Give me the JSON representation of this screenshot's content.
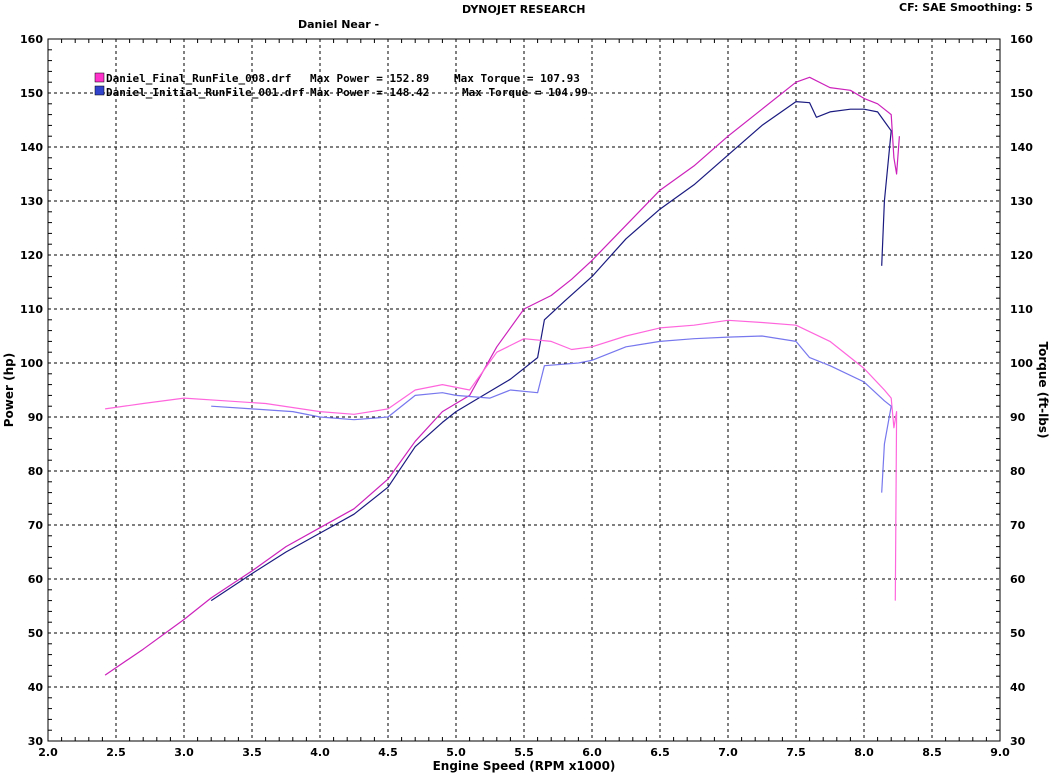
{
  "header": {
    "title": "DYNOJET RESEARCH",
    "operator": "Daniel Near -",
    "settings": "CF: SAE  Smoothing: 5"
  },
  "legend": [
    {
      "file": "Daniel_Final_RunFile_008.drf",
      "power_text": "Max Power = 152.89",
      "torque_text": "Max Torque = 107.93",
      "color": "#ff33cc"
    },
    {
      "file": "Daniel_Initial_RunFile_001.drf",
      "power_text": "Max Power = 148.42",
      "torque_text": "Max Torque = 104.99",
      "color": "#1a1a80"
    }
  ],
  "chart_data": {
    "type": "line",
    "xlabel": "Engine Speed (RPM x1000)",
    "ylabel": "Power (hp)",
    "y2label": "Torque (ft-lbs)",
    "xlim": [
      2.0,
      9.0
    ],
    "ylim": [
      30,
      160
    ],
    "y2lim": [
      30,
      160
    ],
    "x_ticks": [
      "2.0",
      "2.5",
      "3.0",
      "3.5",
      "4.0",
      "4.5",
      "5.0",
      "5.5",
      "6.0",
      "6.5",
      "7.0",
      "7.5",
      "8.0",
      "8.5",
      "9.0"
    ],
    "y_ticks": [
      "30",
      "40",
      "50",
      "60",
      "70",
      "80",
      "90",
      "100",
      "110",
      "120",
      "130",
      "140",
      "150",
      "160"
    ],
    "grid": true,
    "series": [
      {
        "name": "Daniel_Final_RunFile_008.drf",
        "measure": "power",
        "color": "#cc22bb",
        "points": [
          [
            2.42,
            42.2
          ],
          [
            2.7,
            47
          ],
          [
            3.0,
            52.5
          ],
          [
            3.2,
            56.5
          ],
          [
            3.5,
            61.5
          ],
          [
            3.75,
            66
          ],
          [
            4.0,
            69.5
          ],
          [
            4.25,
            73
          ],
          [
            4.5,
            78.5
          ],
          [
            4.7,
            85.5
          ],
          [
            4.9,
            91
          ],
          [
            5.1,
            94
          ],
          [
            5.3,
            103
          ],
          [
            5.5,
            110
          ],
          [
            5.7,
            112.5
          ],
          [
            5.85,
            115.5
          ],
          [
            6.0,
            119
          ],
          [
            6.25,
            125.5
          ],
          [
            6.5,
            132
          ],
          [
            6.75,
            136.5
          ],
          [
            7.0,
            142
          ],
          [
            7.25,
            147
          ],
          [
            7.5,
            152
          ],
          [
            7.6,
            152.9
          ],
          [
            7.75,
            151
          ],
          [
            7.9,
            150.5
          ],
          [
            8.0,
            149
          ],
          [
            8.1,
            148
          ],
          [
            8.2,
            146
          ],
          [
            8.22,
            138
          ],
          [
            8.24,
            135
          ],
          [
            8.26,
            142
          ]
        ]
      },
      {
        "name": "Daniel_Initial_RunFile_001.drf",
        "measure": "power",
        "color": "#1a1a80",
        "points": [
          [
            3.2,
            56
          ],
          [
            3.5,
            61
          ],
          [
            3.75,
            65
          ],
          [
            4.0,
            68.5
          ],
          [
            4.25,
            72
          ],
          [
            4.5,
            77
          ],
          [
            4.7,
            84.5
          ],
          [
            4.9,
            89
          ],
          [
            5.0,
            91
          ],
          [
            5.2,
            94
          ],
          [
            5.4,
            97
          ],
          [
            5.6,
            101
          ],
          [
            5.65,
            108
          ],
          [
            5.8,
            111.5
          ],
          [
            6.0,
            116
          ],
          [
            6.25,
            123
          ],
          [
            6.5,
            128.5
          ],
          [
            6.75,
            133
          ],
          [
            7.0,
            138.5
          ],
          [
            7.25,
            144
          ],
          [
            7.5,
            148.4
          ],
          [
            7.6,
            148.2
          ],
          [
            7.65,
            145.5
          ],
          [
            7.75,
            146.5
          ],
          [
            7.9,
            147
          ],
          [
            8.0,
            147
          ],
          [
            8.1,
            146.5
          ],
          [
            8.2,
            143
          ],
          [
            8.15,
            130
          ],
          [
            8.13,
            118
          ]
        ]
      },
      {
        "name": "Daniel_Final_RunFile_008.drf",
        "measure": "torque",
        "color": "#ff66dd",
        "points": [
          [
            2.42,
            91.5
          ],
          [
            2.7,
            92.5
          ],
          [
            3.0,
            93.5
          ],
          [
            3.3,
            93
          ],
          [
            3.6,
            92.5
          ],
          [
            4.0,
            91
          ],
          [
            4.25,
            90.5
          ],
          [
            4.5,
            91.5
          ],
          [
            4.7,
            95
          ],
          [
            4.9,
            96
          ],
          [
            5.1,
            95
          ],
          [
            5.3,
            102
          ],
          [
            5.5,
            104.5
          ],
          [
            5.7,
            104
          ],
          [
            5.85,
            102.5
          ],
          [
            6.0,
            103
          ],
          [
            6.25,
            105
          ],
          [
            6.5,
            106.5
          ],
          [
            6.75,
            107
          ],
          [
            7.0,
            107.9
          ],
          [
            7.25,
            107.5
          ],
          [
            7.5,
            107
          ],
          [
            7.75,
            104
          ],
          [
            8.0,
            99
          ],
          [
            8.15,
            95
          ],
          [
            8.2,
            93.5
          ],
          [
            8.22,
            88
          ],
          [
            8.24,
            91
          ],
          [
            8.23,
            56
          ]
        ]
      },
      {
        "name": "Daniel_Initial_RunFile_001.drf",
        "measure": "torque",
        "color": "#7777ee",
        "points": [
          [
            3.2,
            92
          ],
          [
            3.5,
            91.5
          ],
          [
            3.8,
            91
          ],
          [
            4.0,
            90
          ],
          [
            4.25,
            89.5
          ],
          [
            4.5,
            90
          ],
          [
            4.7,
            94
          ],
          [
            4.9,
            94.5
          ],
          [
            5.0,
            94
          ],
          [
            5.25,
            93.5
          ],
          [
            5.4,
            95
          ],
          [
            5.6,
            94.5
          ],
          [
            5.65,
            99.5
          ],
          [
            5.9,
            100
          ],
          [
            6.0,
            100.5
          ],
          [
            6.25,
            103
          ],
          [
            6.5,
            104
          ],
          [
            6.75,
            104.5
          ],
          [
            7.0,
            104.8
          ],
          [
            7.25,
            105
          ],
          [
            7.5,
            104
          ],
          [
            7.6,
            101
          ],
          [
            7.75,
            99.5
          ],
          [
            8.0,
            96.5
          ],
          [
            8.15,
            93
          ],
          [
            8.2,
            92
          ],
          [
            8.15,
            85
          ],
          [
            8.13,
            76
          ]
        ]
      }
    ]
  }
}
